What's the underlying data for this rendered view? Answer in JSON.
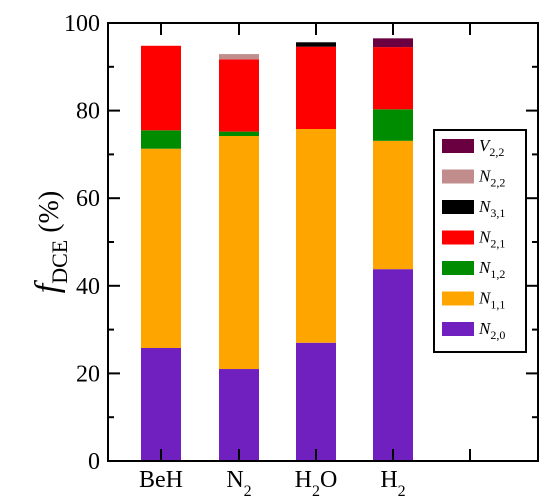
{
  "chart_data": {
    "type": "bar",
    "stacked": true,
    "categories": [
      {
        "base": "BeH",
        "sub": ""
      },
      {
        "base": "N",
        "sub": "2"
      },
      {
        "base": "H",
        "sub": "2",
        "tail": "O"
      },
      {
        "base": "H",
        "sub": "2"
      }
    ],
    "ylabel": {
      "symbol": "f",
      "sub": "DCE",
      "unit": "(%)"
    },
    "ylim": [
      0,
      100
    ],
    "yticks": [
      0,
      20,
      40,
      60,
      80,
      100
    ],
    "grid": false,
    "legend_position": "right",
    "series": [
      {
        "name": "N",
        "sub": "2,0",
        "color": "#7020be",
        "values": [
          25.8,
          21.0,
          27.0,
          43.8
        ]
      },
      {
        "name": "N",
        "sub": "1,1",
        "color": "#ffa500",
        "values": [
          45.5,
          53.2,
          48.8,
          29.3
        ]
      },
      {
        "name": "N",
        "sub": "1,2",
        "color": "#008c00",
        "values": [
          4.2,
          1.0,
          0.0,
          7.2
        ]
      },
      {
        "name": "N",
        "sub": "2,1",
        "color": "#ff0000",
        "values": [
          19.3,
          16.5,
          18.8,
          14.2
        ]
      },
      {
        "name": "N",
        "sub": "3,1",
        "color": "#000000",
        "values": [
          0.0,
          0.0,
          1.0,
          0.0
        ]
      },
      {
        "name": "N",
        "sub": "2,2",
        "color": "#c08c8c",
        "values": [
          0.0,
          1.2,
          0.0,
          0.0
        ]
      },
      {
        "name": "V",
        "sub": "2,2",
        "color": "#6b0040",
        "values": [
          0.0,
          0.0,
          0.0,
          2.0
        ]
      }
    ]
  }
}
